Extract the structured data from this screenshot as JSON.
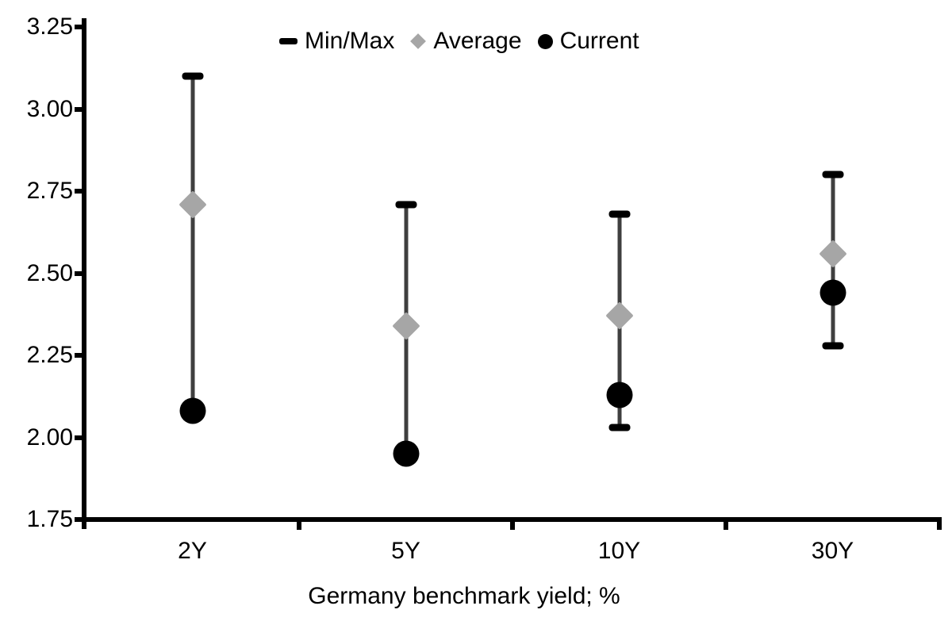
{
  "colors": {
    "background": "#ffffff",
    "axis": "#000000",
    "whisker_line": "#3f3f3f",
    "minmax_cap": "#000000",
    "average_marker": "#a6a6a6",
    "current_marker": "#000000"
  },
  "chart_data": {
    "type": "scatter",
    "variant": "min-max-range-with-points",
    "title": "",
    "xlabel": "Germany benchmark yield; %",
    "ylabel": "",
    "categories": [
      "2Y",
      "5Y",
      "10Y",
      "30Y"
    ],
    "series": [
      {
        "name": "Min/Max",
        "role": "range",
        "marker": "dash",
        "min": [
          2.08,
          1.95,
          2.03,
          2.28
        ],
        "max": [
          3.1,
          2.71,
          2.68,
          2.8
        ]
      },
      {
        "name": "Average",
        "role": "point",
        "marker": "diamond",
        "values": [
          2.71,
          2.34,
          2.37,
          2.56
        ]
      },
      {
        "name": "Current",
        "role": "point",
        "marker": "circle",
        "values": [
          2.08,
          1.95,
          2.13,
          2.44
        ]
      }
    ],
    "ylim": [
      1.75,
      3.25
    ],
    "yticks": [
      "3.25",
      "3.00",
      "2.75",
      "2.50",
      "2.25",
      "2.00",
      "1.75"
    ],
    "grid": false,
    "legend_position": "top-center"
  }
}
